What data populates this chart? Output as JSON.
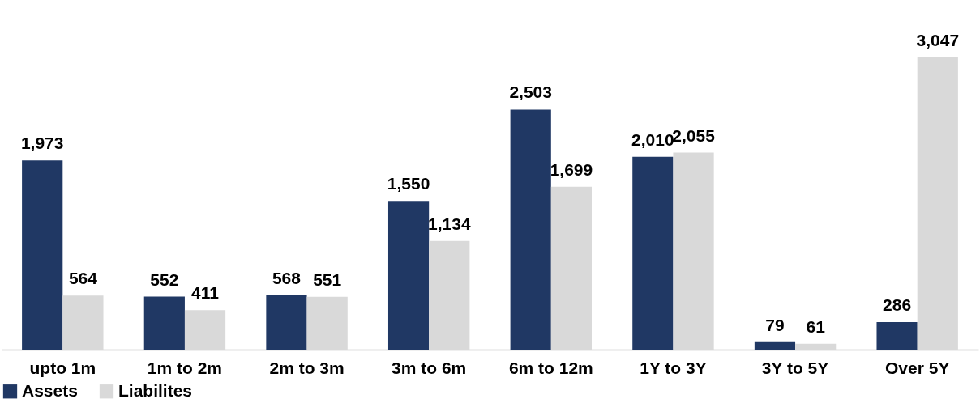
{
  "chart_data": {
    "type": "bar",
    "categories": [
      "upto 1m",
      "1m to 2m",
      "2m to 3m",
      "3m to 6m",
      "6m to 12m",
      "1Y to 3Y",
      "3Y to 5Y",
      "Over 5Y"
    ],
    "series": [
      {
        "name": "Assets",
        "color": "#203864",
        "values": [
          1973,
          552,
          568,
          1550,
          2503,
          2010,
          79,
          286
        ],
        "value_labels": [
          "1,973",
          "552",
          "568",
          "1,550",
          "2,503",
          "2,010",
          "79",
          "286"
        ]
      },
      {
        "name": "Liabilites",
        "color": "#d9d9d9",
        "values": [
          564,
          411,
          551,
          1134,
          1699,
          2055,
          61,
          3047
        ],
        "value_labels": [
          "564",
          "411",
          "551",
          "1,134",
          "1,699",
          "2,055",
          "61",
          "3,047"
        ]
      }
    ],
    "legend": "bottom"
  }
}
